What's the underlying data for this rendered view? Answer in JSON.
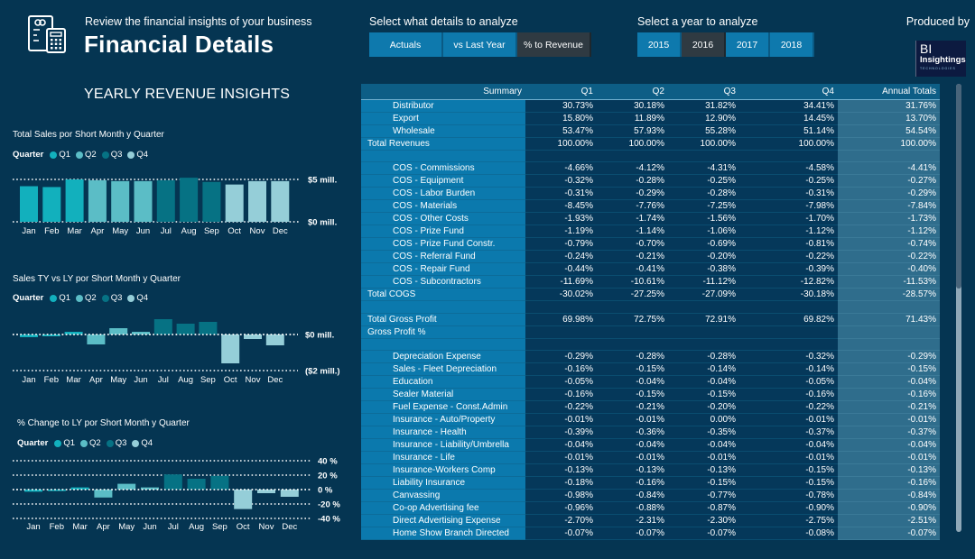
{
  "header": {
    "subtitle": "Review the financial insights of your business",
    "title": "Financial Details",
    "logo_icon": "finance-calculator-icon"
  },
  "details_selector": {
    "label": "Select what details to analyze",
    "options": [
      "Actuals",
      "vs Last Year",
      "% to Revenue"
    ],
    "selected": "% to Revenue"
  },
  "year_selector": {
    "label": "Select a year to analyze",
    "options": [
      "2015",
      "2016",
      "2017",
      "2018"
    ],
    "selected": "2016"
  },
  "produced_by": {
    "label": "Produced by",
    "logo_line1": "BI",
    "logo_line2": "Insightings",
    "logo_line3": "TECHNOLOGIES"
  },
  "left_panel": {
    "section_title": "YEARLY REVENUE INSIGHTS"
  },
  "colors": {
    "Q1": "#12b0bd",
    "Q2": "#5bbdc6",
    "Q3": "#067284",
    "Q4": "#95ced8",
    "background": "#053552",
    "button": "#0e79ad",
    "button_active": "#2f3a42"
  },
  "chart_data": [
    {
      "type": "bar",
      "title": "Total Sales por Short Month y Quarter",
      "legend_title": "Quarter",
      "legend": [
        "Q1",
        "Q2",
        "Q3",
        "Q4"
      ],
      "legend_position": "top-left",
      "categories": [
        "Jan",
        "Feb",
        "Mar",
        "Apr",
        "May",
        "Jun",
        "Jul",
        "Aug",
        "Sep",
        "Oct",
        "Nov",
        "Dec"
      ],
      "quarters": [
        "Q1",
        "Q1",
        "Q1",
        "Q2",
        "Q2",
        "Q2",
        "Q3",
        "Q3",
        "Q3",
        "Q4",
        "Q4",
        "Q4"
      ],
      "values": [
        4.2,
        4.1,
        5.0,
        4.9,
        4.8,
        4.8,
        4.9,
        5.2,
        4.7,
        4.4,
        4.8,
        4.8
      ],
      "ylim": [
        0,
        5
      ],
      "tick_values": [
        5,
        0
      ],
      "tick_labels": [
        "$5 mill.",
        "$0 mill."
      ],
      "ylabel": "",
      "xlabel": "",
      "grid": true
    },
    {
      "type": "bar",
      "title": "Sales TY vs LY por Short Month y Quarter",
      "legend_title": "Quarter",
      "legend": [
        "Q1",
        "Q2",
        "Q3",
        "Q4"
      ],
      "legend_position": "top-left",
      "categories": [
        "Jan",
        "Feb",
        "Mar",
        "Apr",
        "May",
        "Jun",
        "Jul",
        "Aug",
        "Sep",
        "Oct",
        "Nov",
        "Dec"
      ],
      "quarters": [
        "Q1",
        "Q1",
        "Q1",
        "Q2",
        "Q2",
        "Q2",
        "Q3",
        "Q3",
        "Q3",
        "Q4",
        "Q4",
        "Q4"
      ],
      "values": [
        -0.15,
        -0.1,
        0.15,
        -0.55,
        0.35,
        0.15,
        0.85,
        0.6,
        0.7,
        -1.6,
        -0.25,
        -0.6
      ],
      "ylim": [
        -2,
        0
      ],
      "tick_values": [
        0,
        -2
      ],
      "tick_labels": [
        "$0 mill.",
        "($2 mill.)"
      ],
      "ylabel": "",
      "xlabel": "",
      "grid": true
    },
    {
      "type": "bar",
      "title": "% Change to LY por Short Month y Quarter",
      "legend_title": "Quarter",
      "legend": [
        "Q1",
        "Q2",
        "Q3",
        "Q4"
      ],
      "legend_position": "top-left",
      "categories": [
        "Jan",
        "Feb",
        "Mar",
        "Apr",
        "May",
        "Jun",
        "Jul",
        "Aug",
        "Sep",
        "Oct",
        "Nov",
        "Dec"
      ],
      "quarters": [
        "Q1",
        "Q1",
        "Q1",
        "Q2",
        "Q2",
        "Q2",
        "Q3",
        "Q3",
        "Q3",
        "Q4",
        "Q4",
        "Q4"
      ],
      "values": [
        -3,
        -2,
        3,
        -11,
        8,
        3,
        21,
        15,
        19,
        -27,
        -5,
        -10
      ],
      "ylim": [
        -40,
        40
      ],
      "tick_values": [
        40,
        20,
        0,
        -20,
        -40
      ],
      "tick_labels": [
        "40 %",
        "20 %",
        "0 %",
        "-20 %",
        "-40 %"
      ],
      "ylabel": "",
      "xlabel": "",
      "grid": true
    }
  ],
  "table": {
    "columns": [
      "Summary",
      "Q1",
      "Q2",
      "Q3",
      "Q4",
      "Annual Totals"
    ],
    "rows": [
      {
        "label": "Distributor",
        "level": "indent",
        "values": [
          "30.73%",
          "30.18%",
          "31.82%",
          "34.41%",
          "31.76%"
        ]
      },
      {
        "label": "Export",
        "level": "indent",
        "values": [
          "15.80%",
          "11.89%",
          "12.90%",
          "14.45%",
          "13.70%"
        ]
      },
      {
        "label": "Wholesale",
        "level": "indent",
        "values": [
          "53.47%",
          "57.93%",
          "55.28%",
          "51.14%",
          "54.54%"
        ]
      },
      {
        "label": "Total Revenues",
        "level": "total",
        "values": [
          "100.00%",
          "100.00%",
          "100.00%",
          "100.00%",
          "100.00%"
        ]
      },
      {
        "label": "",
        "level": "blank",
        "values": [
          "",
          "",
          "",
          "",
          ""
        ]
      },
      {
        "label": "COS - Commissions",
        "level": "indent",
        "values": [
          "-4.66%",
          "-4.12%",
          "-4.31%",
          "-4.58%",
          "-4.41%"
        ]
      },
      {
        "label": "COS - Equipment",
        "level": "indent",
        "values": [
          "-0.32%",
          "-0.28%",
          "-0.25%",
          "-0.25%",
          "-0.27%"
        ]
      },
      {
        "label": "COS - Labor Burden",
        "level": "indent",
        "values": [
          "-0.31%",
          "-0.29%",
          "-0.28%",
          "-0.31%",
          "-0.29%"
        ]
      },
      {
        "label": "COS - Materials",
        "level": "indent",
        "values": [
          "-8.45%",
          "-7.76%",
          "-7.25%",
          "-7.98%",
          "-7.84%"
        ]
      },
      {
        "label": "COS - Other Costs",
        "level": "indent",
        "values": [
          "-1.93%",
          "-1.74%",
          "-1.56%",
          "-1.70%",
          "-1.73%"
        ]
      },
      {
        "label": "COS - Prize Fund",
        "level": "indent",
        "values": [
          "-1.19%",
          "-1.14%",
          "-1.06%",
          "-1.12%",
          "-1.12%"
        ]
      },
      {
        "label": "COS - Prize Fund Constr.",
        "level": "indent",
        "values": [
          "-0.79%",
          "-0.70%",
          "-0.69%",
          "-0.81%",
          "-0.74%"
        ]
      },
      {
        "label": "COS - Referral Fund",
        "level": "indent",
        "values": [
          "-0.24%",
          "-0.21%",
          "-0.20%",
          "-0.22%",
          "-0.22%"
        ]
      },
      {
        "label": "COS - Repair Fund",
        "level": "indent",
        "values": [
          "-0.44%",
          "-0.41%",
          "-0.38%",
          "-0.39%",
          "-0.40%"
        ]
      },
      {
        "label": "COS - Subcontractors",
        "level": "indent",
        "values": [
          "-11.69%",
          "-10.61%",
          "-11.12%",
          "-12.82%",
          "-11.53%"
        ]
      },
      {
        "label": "Total COGS",
        "level": "total",
        "values": [
          "-30.02%",
          "-27.25%",
          "-27.09%",
          "-30.18%",
          "-28.57%"
        ]
      },
      {
        "label": "",
        "level": "blank",
        "values": [
          "",
          "",
          "",
          "",
          ""
        ]
      },
      {
        "label": "Total Gross Profit",
        "level": "total",
        "values": [
          "69.98%",
          "72.75%",
          "72.91%",
          "69.82%",
          "71.43%"
        ]
      },
      {
        "label": "Gross Profit %",
        "level": "total",
        "values": [
          "",
          "",
          "",
          "",
          ""
        ]
      },
      {
        "label": "",
        "level": "blank",
        "values": [
          "",
          "",
          "",
          "",
          ""
        ]
      },
      {
        "label": "Depreciation Expense",
        "level": "indent",
        "values": [
          "-0.29%",
          "-0.28%",
          "-0.28%",
          "-0.32%",
          "-0.29%"
        ]
      },
      {
        "label": "Sales - Fleet Depreciation",
        "level": "indent",
        "values": [
          "-0.16%",
          "-0.15%",
          "-0.14%",
          "-0.14%",
          "-0.15%"
        ]
      },
      {
        "label": "Education",
        "level": "indent",
        "values": [
          "-0.05%",
          "-0.04%",
          "-0.04%",
          "-0.05%",
          "-0.04%"
        ]
      },
      {
        "label": "Sealer Material",
        "level": "indent",
        "values": [
          "-0.16%",
          "-0.15%",
          "-0.15%",
          "-0.16%",
          "-0.16%"
        ]
      },
      {
        "label": "Fuel Expense - Const.Admin",
        "level": "indent",
        "values": [
          "-0.22%",
          "-0.21%",
          "-0.20%",
          "-0.22%",
          "-0.21%"
        ]
      },
      {
        "label": "Insurance - Auto/Property",
        "level": "indent",
        "values": [
          "-0.01%",
          "-0.01%",
          "0.00%",
          "-0.01%",
          "-0.01%"
        ]
      },
      {
        "label": "Insurance - Health",
        "level": "indent",
        "values": [
          "-0.39%",
          "-0.36%",
          "-0.35%",
          "-0.37%",
          "-0.37%"
        ]
      },
      {
        "label": "Insurance - Liability/Umbrella",
        "level": "indent",
        "values": [
          "-0.04%",
          "-0.04%",
          "-0.04%",
          "-0.04%",
          "-0.04%"
        ]
      },
      {
        "label": "Insurance - Life",
        "level": "indent",
        "values": [
          "-0.01%",
          "-0.01%",
          "-0.01%",
          "-0.01%",
          "-0.01%"
        ]
      },
      {
        "label": "Insurance-Workers Comp",
        "level": "indent",
        "values": [
          "-0.13%",
          "-0.13%",
          "-0.13%",
          "-0.15%",
          "-0.13%"
        ]
      },
      {
        "label": "Liability Insurance",
        "level": "indent",
        "values": [
          "-0.18%",
          "-0.16%",
          "-0.15%",
          "-0.15%",
          "-0.16%"
        ]
      },
      {
        "label": "Canvassing",
        "level": "indent",
        "values": [
          "-0.98%",
          "-0.84%",
          "-0.77%",
          "-0.78%",
          "-0.84%"
        ]
      },
      {
        "label": "Co-op Advertising fee",
        "level": "indent",
        "values": [
          "-0.96%",
          "-0.88%",
          "-0.87%",
          "-0.90%",
          "-0.90%"
        ]
      },
      {
        "label": "Direct Advertising Expense",
        "level": "indent",
        "values": [
          "-2.70%",
          "-2.31%",
          "-2.30%",
          "-2.75%",
          "-2.51%"
        ]
      },
      {
        "label": "Home Show Branch Directed",
        "level": "indent",
        "values": [
          "-0.07%",
          "-0.07%",
          "-0.07%",
          "-0.08%",
          "-0.07%"
        ]
      }
    ]
  }
}
